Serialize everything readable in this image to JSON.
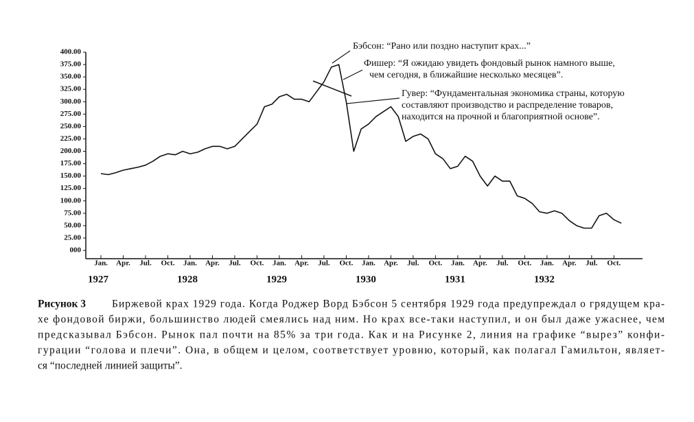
{
  "chart_data": {
    "type": "line",
    "x": [
      "1927-01",
      "1927-02",
      "1927-03",
      "1927-04",
      "1927-05",
      "1927-06",
      "1927-07",
      "1927-08",
      "1927-09",
      "1927-10",
      "1927-11",
      "1927-12",
      "1928-01",
      "1928-02",
      "1928-03",
      "1928-04",
      "1928-05",
      "1928-06",
      "1928-07",
      "1928-08",
      "1928-09",
      "1928-10",
      "1928-11",
      "1928-12",
      "1929-01",
      "1929-02",
      "1929-03",
      "1929-04",
      "1929-05",
      "1929-06",
      "1929-07",
      "1929-08",
      "1929-09",
      "1929-10",
      "1929-11",
      "1929-12",
      "1930-01",
      "1930-02",
      "1930-03",
      "1930-04",
      "1930-05",
      "1930-06",
      "1930-07",
      "1930-08",
      "1930-09",
      "1930-10",
      "1930-11",
      "1930-12",
      "1931-01",
      "1931-02",
      "1931-03",
      "1931-04",
      "1931-05",
      "1931-06",
      "1931-07",
      "1931-08",
      "1931-09",
      "1931-10",
      "1931-11",
      "1931-12",
      "1932-01",
      "1932-02",
      "1932-03",
      "1932-04",
      "1932-05",
      "1932-06",
      "1932-07",
      "1932-08",
      "1932-09",
      "1932-10",
      "1932-11"
    ],
    "values": [
      155,
      153,
      157,
      162,
      165,
      168,
      172,
      180,
      190,
      195,
      193,
      200,
      195,
      198,
      205,
      210,
      210,
      205,
      210,
      225,
      240,
      255,
      290,
      295,
      310,
      315,
      305,
      305,
      300,
      320,
      340,
      370,
      375,
      300,
      200,
      245,
      255,
      270,
      280,
      290,
      270,
      220,
      230,
      235,
      225,
      195,
      185,
      165,
      170,
      190,
      180,
      150,
      130,
      150,
      140,
      140,
      110,
      105,
      95,
      78,
      75,
      80,
      75,
      60,
      50,
      45,
      45,
      70,
      75,
      62,
      55
    ],
    "color": "#111111",
    "xlim": [
      "1927-01",
      "1932-12"
    ],
    "xticks": [
      {
        "value": "1927-01",
        "label": "Jan."
      },
      {
        "value": "1927-04",
        "label": "Apr."
      },
      {
        "value": "1927-07",
        "label": "Jul."
      },
      {
        "value": "1927-10",
        "label": "Oct."
      },
      {
        "value": "1928-01",
        "label": "Jan."
      },
      {
        "value": "1928-04",
        "label": "Apr."
      },
      {
        "value": "1928-07",
        "label": "Jul."
      },
      {
        "value": "1928-10",
        "label": "Oct."
      },
      {
        "value": "1929-01",
        "label": "Jan."
      },
      {
        "value": "1929-04",
        "label": "Apr."
      },
      {
        "value": "1929-07",
        "label": "Jul."
      },
      {
        "value": "1929-10",
        "label": "Oct."
      },
      {
        "value": "1930-01",
        "label": "Jan."
      },
      {
        "value": "1930-04",
        "label": "Apr."
      },
      {
        "value": "1930-07",
        "label": "Jul."
      },
      {
        "value": "1930-10",
        "label": "Oct."
      },
      {
        "value": "1931-01",
        "label": "Jan."
      },
      {
        "value": "1931-04",
        "label": "Apr."
      },
      {
        "value": "1931-07",
        "label": "Jul."
      },
      {
        "value": "1931-10",
        "label": "Oct."
      },
      {
        "value": "1932-01",
        "label": "Jan."
      },
      {
        "value": "1932-04",
        "label": "Apr."
      },
      {
        "value": "1932-07",
        "label": "Jul."
      },
      {
        "value": "1932-10",
        "label": "Oct."
      }
    ],
    "year_labels": [
      {
        "value": "1927-01",
        "label": "1927"
      },
      {
        "value": "1928-01",
        "label": "1928"
      },
      {
        "value": "1929-01",
        "label": "1929"
      },
      {
        "value": "1930-01",
        "label": "1930"
      },
      {
        "value": "1931-01",
        "label": "1931"
      },
      {
        "value": "1932-01",
        "label": "1932"
      }
    ],
    "ylim": [
      0,
      400
    ],
    "yticks": [
      {
        "value": 0,
        "label": "000"
      },
      {
        "value": 25,
        "label": "25.00"
      },
      {
        "value": 50,
        "label": "50.00"
      },
      {
        "value": 75,
        "label": "75.00"
      },
      {
        "value": 100,
        "label": "100.00"
      },
      {
        "value": 125,
        "label": "125.00"
      },
      {
        "value": 150,
        "label": "150.00"
      },
      {
        "value": 175,
        "label": "175.00"
      },
      {
        "value": 200,
        "label": "200.00"
      },
      {
        "value": 225,
        "label": "225.00"
      },
      {
        "value": 250,
        "label": "250.00"
      },
      {
        "value": 275,
        "label": "275.00"
      },
      {
        "value": 300,
        "label": "300.00"
      },
      {
        "value": 325,
        "label": "325.00"
      },
      {
        "value": 350,
        "label": "350.00"
      },
      {
        "value": 375,
        "label": "375.00"
      },
      {
        "value": 400,
        "label": "400.00"
      }
    ],
    "grid": false,
    "annotations": [
      {
        "lines": [
          "Бэбсон: “Рано или поздно наступит крах...”"
        ]
      },
      {
        "lines": [
          "Фишер: “Я ожидаю увидеть фондовый рынок намного выше,",
          "чем сегодня, в ближайшие несколько месяцев”."
        ]
      },
      {
        "lines": [
          "Гувер: “Фундаментальная экономика страны, которую",
          "составляют производство и распределение товаров,",
          "находится на прочной и благоприятной основе”."
        ]
      }
    ]
  },
  "caption": {
    "label": "Рисунок 3",
    "lines": [
      "Биржевой крах 1929 года. Когда Роджер Ворд Бэбсон 5 сентября 1929 года предупреждал о грядущем кра-",
      "хе фондовой биржи, большинство людей смеялись над ним. Но крах все-таки наступил, и он был даже ужаснее, чем",
      "предсказывал Бэбсон. Рынок пал почти на 85% за три года. Как и на Рисунке 2, линия на графике “вырез” конфи-",
      "гурации “голова и плечи”. Она, в общем и целом, соответствует уровню, который, как полагал Гамильтон, являет-",
      "ся “последней линией защиты”."
    ]
  }
}
